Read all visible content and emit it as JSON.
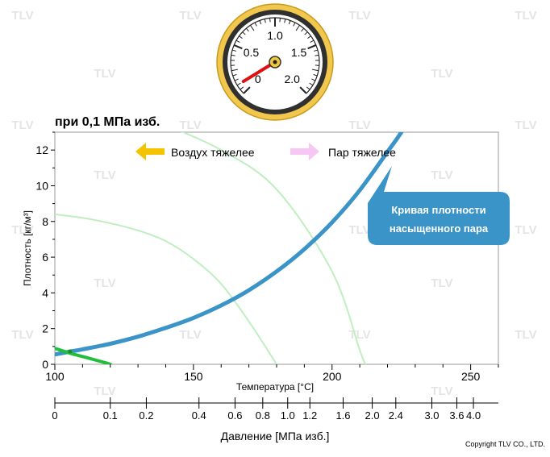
{
  "subtitle": "при 0,1 МПа изб.",
  "gauge": {
    "labels": [
      "0",
      "0.5",
      "1.0",
      "1.5",
      "2.0"
    ],
    "pointer_value": 0.1
  },
  "legend": {
    "left_label": "Воздух тяжелее",
    "right_label": "Пар тяжелее",
    "left_arrow_color": "#f5c400",
    "right_arrow_color": "#f7c6f2"
  },
  "callout": {
    "line1": "Кривая плотности",
    "line2": "насыщенного пара",
    "color": "#3a94c8"
  },
  "watermark": "TLV",
  "copyright": "Copyright TLV CO., LTD.",
  "chart_data": {
    "type": "line",
    "xlabel": "Температура [°C]",
    "ylabel": "Плотность [кг/м³]",
    "xlim": [
      100,
      260
    ],
    "ylim": [
      0,
      13
    ],
    "x_ticks": [
      "100",
      "150",
      "200",
      "250"
    ],
    "y_ticks": [
      "0",
      "2",
      "4",
      "6",
      "8",
      "10",
      "12"
    ],
    "grid": false,
    "secondary_axis": {
      "label": "Давление [МПа изб.]",
      "ticks": [
        {
          "label": "0",
          "temp": 100
        },
        {
          "label": "0.1",
          "temp": 120
        },
        {
          "label": "0.2",
          "temp": 133
        },
        {
          "label": "0.4",
          "temp": 152
        },
        {
          "label": "0.6",
          "temp": 165
        },
        {
          "label": "0.8",
          "temp": 175
        },
        {
          "label": "1.0",
          "temp": 184
        },
        {
          "label": "1.2",
          "temp": 192
        },
        {
          "label": "1.6",
          "temp": 204
        },
        {
          "label": "2.0",
          "temp": 214.5
        },
        {
          "label": "2.4",
          "temp": 223
        },
        {
          "label": "3.0",
          "temp": 236
        },
        {
          "label": "3.6",
          "temp": 245
        },
        {
          "label": "4.0",
          "temp": 251
        }
      ]
    },
    "series": [
      {
        "name": "",
        "color": "#3a94c8",
        "x": [
          100,
          105,
          110,
          120,
          130,
          140,
          150,
          160,
          170,
          180,
          190,
          200,
          210,
          220,
          225,
          230
        ],
        "y": [
          0.55,
          0.7,
          0.84,
          1.15,
          1.55,
          2.04,
          2.6,
          3.3,
          4.15,
          5.2,
          6.45,
          7.95,
          9.75,
          11.9,
          13.0,
          14.3
        ]
      },
      {
        "name": "",
        "color": "#bfeec0",
        "x": [
          140,
          160,
          180,
          200,
          210,
          212
        ],
        "y": [
          13.4,
          12.0,
          9.8,
          5.2,
          0.8,
          0
        ]
      },
      {
        "name": "",
        "color": "#bfeec0",
        "x": [
          100,
          110,
          120,
          130,
          140,
          150,
          160,
          170,
          180
        ],
        "y": [
          8.4,
          8.2,
          7.9,
          7.5,
          6.9,
          5.9,
          4.5,
          2.4,
          0
        ]
      },
      {
        "name": "",
        "color": "#1fbf3a",
        "x": [
          100,
          106,
          112,
          118,
          120
        ],
        "y": [
          0.9,
          0.6,
          0.35,
          0.1,
          0
        ]
      }
    ]
  }
}
